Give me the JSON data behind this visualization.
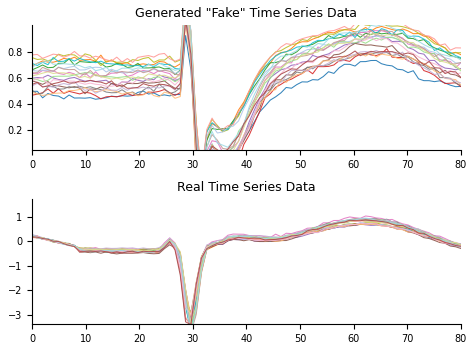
{
  "title_top": "Generated \"Fake\" Time Series Data",
  "title_bottom": "Real Time Series Data",
  "n_points": 82,
  "n_series_fake": 20,
  "n_series_real": 20,
  "xlim": [
    0,
    80
  ],
  "ylim_fake": [
    0.05,
    1.0
  ],
  "ylim_real": [
    -3.4,
    1.7
  ],
  "yticks_fake": [
    0.2,
    0.4,
    0.6,
    0.8
  ],
  "yticks_real": [
    -3,
    -2,
    -1,
    0,
    1
  ],
  "xticks": [
    0,
    10,
    20,
    30,
    40,
    50,
    60,
    70,
    80
  ],
  "background_color": "#ffffff",
  "seed": 42
}
